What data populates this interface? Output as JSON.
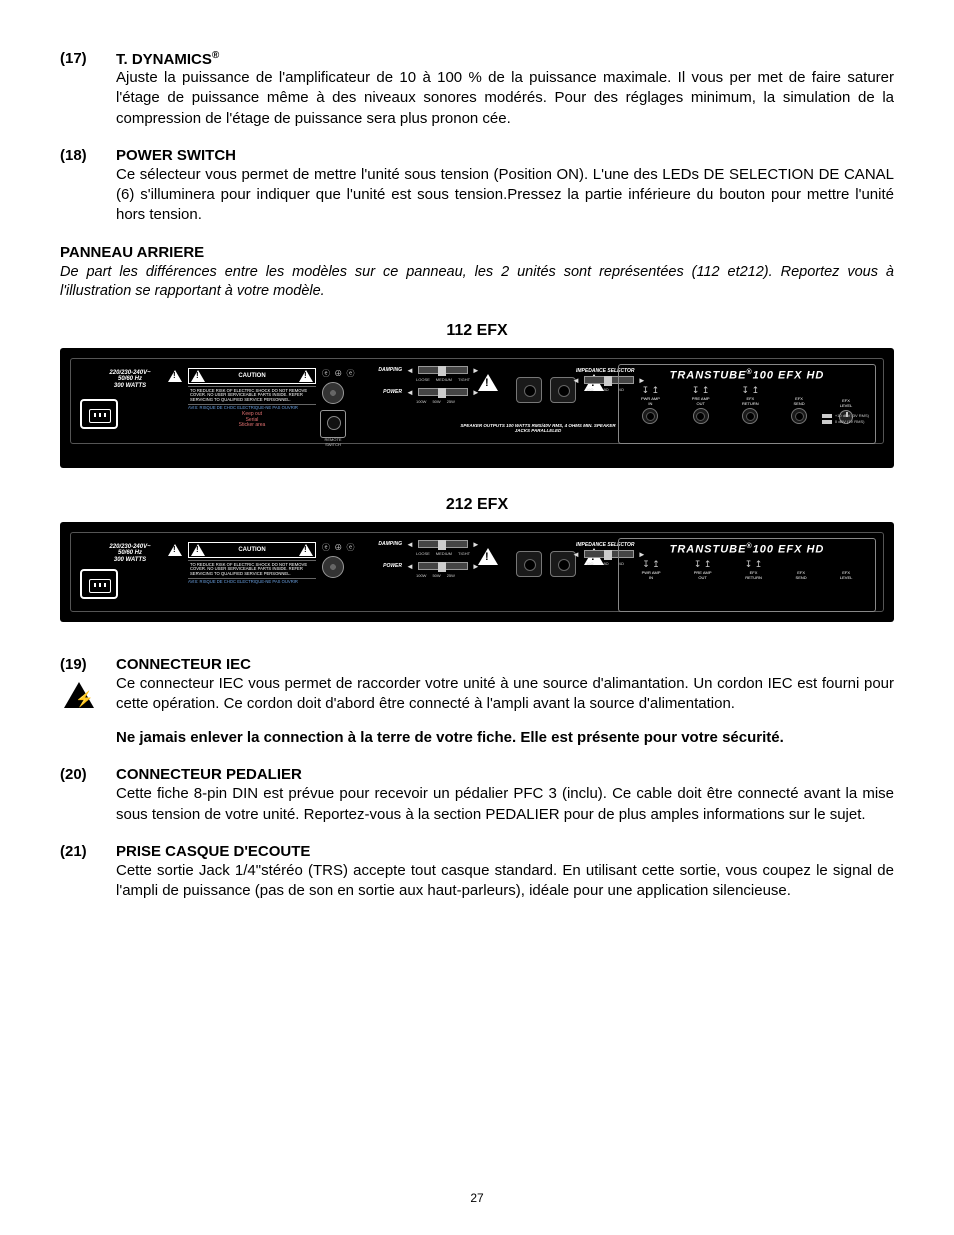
{
  "items": [
    {
      "num": "(17)",
      "title": "T. DYNAMICS",
      "reg": "®",
      "body": "Ajuste la puissance de l'amplificateur de 10 à 100 % de la puissance maximale. Il vous per met de faire saturer l'étage de puissance même à des niveaux sonores modérés. Pour des réglages minimum, la simulation de la compression de l'étage de puissance sera plus pronon cée."
    },
    {
      "num": "(18)",
      "title": "POWER SWITCH",
      "body": "Ce sélecteur vous permet de mettre l'unité sous tension (Position ON). L'une des LEDs DE SELECTION DE CANAL (6) s'illuminera pour indiquer que l'unité est sous tension.Pressez la partie inférieure du bouton pour mettre l'unité hors tension."
    }
  ],
  "rear_panel": {
    "heading": "PANNEAU ARRIERE",
    "note": "De part les différences entre les modèles sur ce panneau, les 2 unités sont représentées (112 et212). Reportez vous à l'illustration se rapportant à votre modèle."
  },
  "panel_labels": {
    "p1": "112 EFX",
    "p2": "212 EFX"
  },
  "diagram": {
    "voltage_lines": [
      "220/230-240V~",
      "50/60 Hz",
      "300 WATTS"
    ],
    "caution": "CAUTION",
    "caution_text": "TO REDUCE RISK OF ELECTRIC SHOCK DO NOT REMOVE COVER. NO USER SERVICEABLE PARTS INSIDE. REFER SERVICING TO QUALIFIED SERVICE PERSONNEL.",
    "caution_blue": "AVIS: RISQUE DE CHOC ELECTRIQUE-NE PAS OUVRIR",
    "caution_red1": "Keep out",
    "caution_red2": "Serial",
    "caution_red3": "Sticker area",
    "symbols": "ⓔ ⊕ ⓔ",
    "remote": "REMOTE SWITCH",
    "damping": "DAMPING",
    "damping_opts": [
      "LOOSE",
      "MEDIUM",
      "TIGHT"
    ],
    "power": "POWER",
    "power_opts": [
      "100W",
      "50W",
      "25W"
    ],
    "speaker_text": "SPEAKER OUTPUTS\n100 WATTS RMS/40V RMS, 4 OHMS MIN.\nSPEAKER JACKS PARALLELED",
    "impedance": "IMPEDANCE SELECTOR",
    "imp_opts": [
      "16Ω",
      "8Ω",
      "4Ω"
    ],
    "brand": "TRANSTUBE",
    "brand_suffix": "100 EFX HD",
    "right_groups": [
      {
        "top": "↧ ↥",
        "label": "PWR AMP\nIN"
      },
      {
        "top": "↧ ↥",
        "label": "PRE AMP\nOUT"
      },
      {
        "top": "↧ ↥",
        "label": "EFX\nRETURN"
      },
      {
        "top": "",
        "label": "EFX\nSEND"
      },
      {
        "top": "",
        "label": "EFX\nLEVEL"
      }
    ],
    "db_hi": "+10 dBV (3V RMS)",
    "db_lo": "0 dBV (1V RMS)"
  },
  "items2": [
    {
      "num": "(19)",
      "title": "CONNECTEUR IEC",
      "body": "Ce connecteur IEC vous permet de raccorder votre unité à une source d'alimantation. Un cordon IEC est fourni pour cette opération. Ce cordon doit d'abord être connecté à l'ampli avant la source d'alimentation.",
      "bold": "Ne jamais enlever la connection à la terre de votre fiche. Elle est présente pour votre sécurité.",
      "warn": true
    },
    {
      "num": "(20)",
      "title": "CONNECTEUR PEDALIER",
      "body": "Cette fiche 8-pin DIN est prévue pour recevoir un pédalier PFC 3 (inclu). Ce cable doit être connecté avant la mise sous tension de votre unité. Reportez-vous à la section PEDALIER pour de plus amples informations sur le sujet."
    },
    {
      "num": "(21)",
      "title": "PRISE CASQUE D'ECOUTE",
      "body": "Cette sortie Jack 1/4\"stéréo (TRS) accepte tout casque standard. En utilisant cette sortie, vous coupez le signal de l'ampli de puissance (pas de son en sortie aux haut-parleurs), idéale pour une application silencieuse."
    }
  ],
  "page": "27"
}
